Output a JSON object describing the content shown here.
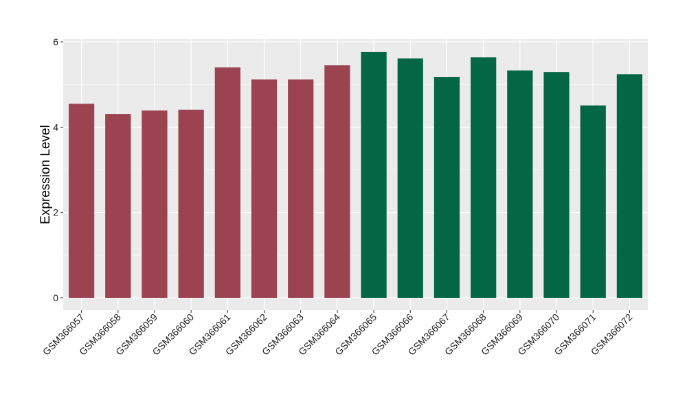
{
  "chart_data": {
    "type": "bar",
    "title": "",
    "xlabel": "",
    "ylabel": "Expression Level",
    "ylim": [
      0,
      6
    ],
    "yticks": [
      0,
      2,
      4,
      6
    ],
    "grid": true,
    "legend": "none",
    "categories": [
      "GSM366057",
      "GSM366058",
      "GSM366059",
      "GSM366060",
      "GSM366061",
      "GSM366062",
      "GSM366063",
      "GSM366064",
      "GSM366065",
      "GSM366066",
      "GSM366067",
      "GSM366068",
      "GSM366069",
      "GSM366070",
      "GSM366071",
      "GSM366072"
    ],
    "values": [
      4.55,
      4.31,
      4.39,
      4.41,
      5.4,
      5.12,
      5.12,
      5.45,
      5.76,
      5.61,
      5.18,
      5.64,
      5.33,
      5.29,
      4.51,
      5.24
    ],
    "bar_colors": [
      "#9b4350",
      "#9b4350",
      "#9b4350",
      "#9b4350",
      "#9b4350",
      "#9b4350",
      "#9b4350",
      "#9b4350",
      "#036745",
      "#036745",
      "#036745",
      "#036745",
      "#036745",
      "#036745",
      "#036745",
      "#036745"
    ],
    "panel_background": "#ebebeb",
    "grid_color": "#ffffff"
  }
}
